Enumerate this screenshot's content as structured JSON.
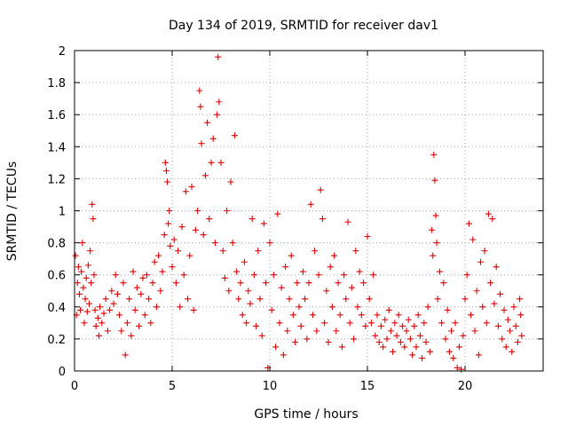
{
  "chart_data": {
    "type": "scatter",
    "title": "Day 134 of 2019, SRMTID for receiver dav1",
    "xlabel": "GPS time / hours",
    "ylabel": "SRMTID / TECUs",
    "xlim": [
      0,
      24
    ],
    "ylim": [
      0,
      2
    ],
    "xticks": [
      0,
      5,
      10,
      15,
      20
    ],
    "xtick_labels": [
      "0",
      "5",
      "10",
      "15",
      "20"
    ],
    "yticks": [
      0,
      0.2,
      0.4,
      0.6,
      0.8,
      1.0,
      1.2,
      1.4,
      1.6,
      1.8,
      2.0
    ],
    "ytick_labels": [
      "0",
      "0.2",
      "0.4",
      "0.6",
      "0.8",
      "1",
      "1.2",
      "1.4",
      "1.6",
      "1.8",
      "2"
    ],
    "grid": true,
    "marker": "+",
    "color": "#e00000",
    "series": [
      {
        "name": "SRMTID",
        "points": [
          [
            0.05,
            0.72
          ],
          [
            0.1,
            0.35
          ],
          [
            0.15,
            0.55
          ],
          [
            0.2,
            0.65
          ],
          [
            0.25,
            0.48
          ],
          [
            0.3,
            0.38
          ],
          [
            0.35,
            0.62
          ],
          [
            0.4,
            0.8
          ],
          [
            0.45,
            0.52
          ],
          [
            0.5,
            0.3
          ],
          [
            0.55,
            0.45
          ],
          [
            0.6,
            0.58
          ],
          [
            0.65,
            0.37
          ],
          [
            0.7,
            0.66
          ],
          [
            0.75,
            0.42
          ],
          [
            0.8,
            0.75
          ],
          [
            0.85,
            0.55
          ],
          [
            0.9,
            1.04
          ],
          [
            0.95,
            0.95
          ],
          [
            1.0,
            0.6
          ],
          [
            1.05,
            0.38
          ],
          [
            1.1,
            0.28
          ],
          [
            1.2,
            0.33
          ],
          [
            1.25,
            0.22
          ],
          [
            1.3,
            0.4
          ],
          [
            1.4,
            0.3
          ],
          [
            1.5,
            0.36
          ],
          [
            1.6,
            0.45
          ],
          [
            1.7,
            0.25
          ],
          [
            1.8,
            0.38
          ],
          [
            1.9,
            0.5
          ],
          [
            2.0,
            0.42
          ],
          [
            2.1,
            0.6
          ],
          [
            2.2,
            0.48
          ],
          [
            2.3,
            0.35
          ],
          [
            2.4,
            0.25
          ],
          [
            2.5,
            0.55
          ],
          [
            2.6,
            0.1
          ],
          [
            2.7,
            0.3
          ],
          [
            2.8,
            0.45
          ],
          [
            2.9,
            0.22
          ],
          [
            3.0,
            0.62
          ],
          [
            3.1,
            0.38
          ],
          [
            3.2,
            0.52
          ],
          [
            3.3,
            0.28
          ],
          [
            3.4,
            0.48
          ],
          [
            3.5,
            0.58
          ],
          [
            3.6,
            0.35
          ],
          [
            3.7,
            0.6
          ],
          [
            3.8,
            0.45
          ],
          [
            3.9,
            0.3
          ],
          [
            4.0,
            0.55
          ],
          [
            4.1,
            0.68
          ],
          [
            4.2,
            0.4
          ],
          [
            4.3,
            0.72
          ],
          [
            4.4,
            0.5
          ],
          [
            4.5,
            0.62
          ],
          [
            4.6,
            0.85
          ],
          [
            4.65,
            1.3
          ],
          [
            4.7,
            1.25
          ],
          [
            4.75,
            1.18
          ],
          [
            4.8,
            0.92
          ],
          [
            4.85,
            1.0
          ],
          [
            4.9,
            0.78
          ],
          [
            5.0,
            0.65
          ],
          [
            5.1,
            0.82
          ],
          [
            5.2,
            0.55
          ],
          [
            5.3,
            0.75
          ],
          [
            5.4,
            0.4
          ],
          [
            5.5,
            0.9
          ],
          [
            5.6,
            0.6
          ],
          [
            5.7,
            1.12
          ],
          [
            5.8,
            0.45
          ],
          [
            5.9,
            0.72
          ],
          [
            6.0,
            1.15
          ],
          [
            6.1,
            0.38
          ],
          [
            6.2,
            0.88
          ],
          [
            6.3,
            1.0
          ],
          [
            6.4,
            1.75
          ],
          [
            6.45,
            1.65
          ],
          [
            6.5,
            1.42
          ],
          [
            6.6,
            0.85
          ],
          [
            6.7,
            1.22
          ],
          [
            6.8,
            1.55
          ],
          [
            6.9,
            0.95
          ],
          [
            7.0,
            1.3
          ],
          [
            7.1,
            1.45
          ],
          [
            7.2,
            0.8
          ],
          [
            7.3,
            1.6
          ],
          [
            7.35,
            1.96
          ],
          [
            7.4,
            1.68
          ],
          [
            7.5,
            1.3
          ],
          [
            7.6,
            0.75
          ],
          [
            7.7,
            0.58
          ],
          [
            7.8,
            1.0
          ],
          [
            7.9,
            0.5
          ],
          [
            8.0,
            1.18
          ],
          [
            8.1,
            0.8
          ],
          [
            8.2,
            1.47
          ],
          [
            8.3,
            0.62
          ],
          [
            8.4,
            0.45
          ],
          [
            8.5,
            0.55
          ],
          [
            8.6,
            0.35
          ],
          [
            8.7,
            0.68
          ],
          [
            8.8,
            0.3
          ],
          [
            8.9,
            0.5
          ],
          [
            9.0,
            0.42
          ],
          [
            9.1,
            0.95
          ],
          [
            9.2,
            0.6
          ],
          [
            9.3,
            0.28
          ],
          [
            9.4,
            0.75
          ],
          [
            9.5,
            0.45
          ],
          [
            9.6,
            0.22
          ],
          [
            9.7,
            0.92
          ],
          [
            9.8,
            0.55
          ],
          [
            9.9,
            0.02
          ],
          [
            10.0,
            0.8
          ],
          [
            10.1,
            0.38
          ],
          [
            10.2,
            0.6
          ],
          [
            10.3,
            0.15
          ],
          [
            10.4,
            0.98
          ],
          [
            10.5,
            0.3
          ],
          [
            10.6,
            0.52
          ],
          [
            10.7,
            0.1
          ],
          [
            10.8,
            0.65
          ],
          [
            10.9,
            0.25
          ],
          [
            11.0,
            0.45
          ],
          [
            11.1,
            0.72
          ],
          [
            11.2,
            0.35
          ],
          [
            11.3,
            0.18
          ],
          [
            11.4,
            0.55
          ],
          [
            11.5,
            0.4
          ],
          [
            11.6,
            0.28
          ],
          [
            11.7,
            0.62
          ],
          [
            11.8,
            0.45
          ],
          [
            11.9,
            0.2
          ],
          [
            12.0,
            0.55
          ],
          [
            12.1,
            1.04
          ],
          [
            12.2,
            0.35
          ],
          [
            12.3,
            0.75
          ],
          [
            12.4,
            0.25
          ],
          [
            12.5,
            0.6
          ],
          [
            12.6,
            1.13
          ],
          [
            12.7,
            0.95
          ],
          [
            12.8,
            0.3
          ],
          [
            12.9,
            0.5
          ],
          [
            13.0,
            0.18
          ],
          [
            13.1,
            0.65
          ],
          [
            13.2,
            0.4
          ],
          [
            13.3,
            0.72
          ],
          [
            13.4,
            0.25
          ],
          [
            13.5,
            0.55
          ],
          [
            13.6,
            0.35
          ],
          [
            13.7,
            0.15
          ],
          [
            13.8,
            0.6
          ],
          [
            13.9,
            0.45
          ],
          [
            14.0,
            0.93
          ],
          [
            14.1,
            0.3
          ],
          [
            14.2,
            0.52
          ],
          [
            14.3,
            0.2
          ],
          [
            14.4,
            0.75
          ],
          [
            14.5,
            0.4
          ],
          [
            14.6,
            0.62
          ],
          [
            14.7,
            0.35
          ],
          [
            14.8,
            0.55
          ],
          [
            14.9,
            0.28
          ],
          [
            15.0,
            0.84
          ],
          [
            15.1,
            0.45
          ],
          [
            15.2,
            0.3
          ],
          [
            15.3,
            0.6
          ],
          [
            15.4,
            0.22
          ],
          [
            15.5,
            0.35
          ],
          [
            15.6,
            0.18
          ],
          [
            15.7,
            0.28
          ],
          [
            15.8,
            0.15
          ],
          [
            15.9,
            0.32
          ],
          [
            16.0,
            0.2
          ],
          [
            16.1,
            0.38
          ],
          [
            16.2,
            0.25
          ],
          [
            16.3,
            0.12
          ],
          [
            16.4,
            0.3
          ],
          [
            16.5,
            0.22
          ],
          [
            16.6,
            0.35
          ],
          [
            16.7,
            0.18
          ],
          [
            16.8,
            0.28
          ],
          [
            16.9,
            0.15
          ],
          [
            17.0,
            0.25
          ],
          [
            17.1,
            0.32
          ],
          [
            17.2,
            0.2
          ],
          [
            17.3,
            0.1
          ],
          [
            17.4,
            0.28
          ],
          [
            17.5,
            0.15
          ],
          [
            17.6,
            0.35
          ],
          [
            17.7,
            0.22
          ],
          [
            17.8,
            0.08
          ],
          [
            17.9,
            0.3
          ],
          [
            18.0,
            0.18
          ],
          [
            18.1,
            0.4
          ],
          [
            18.2,
            0.12
          ],
          [
            18.3,
            0.88
          ],
          [
            18.35,
            0.72
          ],
          [
            18.4,
            1.35
          ],
          [
            18.45,
            1.19
          ],
          [
            18.5,
            0.97
          ],
          [
            18.55,
            0.8
          ],
          [
            18.6,
            0.45
          ],
          [
            18.7,
            0.62
          ],
          [
            18.8,
            0.3
          ],
          [
            18.9,
            0.55
          ],
          [
            19.0,
            0.2
          ],
          [
            19.1,
            0.38
          ],
          [
            19.2,
            0.12
          ],
          [
            19.3,
            0.25
          ],
          [
            19.4,
            0.08
          ],
          [
            19.5,
            0.3
          ],
          [
            19.6,
            0.02
          ],
          [
            19.7,
            0.15
          ],
          [
            19.8,
            0.01
          ],
          [
            19.9,
            0.22
          ],
          [
            20.0,
            0.45
          ],
          [
            20.1,
            0.6
          ],
          [
            20.2,
            0.92
          ],
          [
            20.3,
            0.35
          ],
          [
            20.4,
            0.82
          ],
          [
            20.5,
            0.25
          ],
          [
            20.6,
            0.5
          ],
          [
            20.7,
            0.1
          ],
          [
            20.8,
            0.68
          ],
          [
            20.9,
            0.4
          ],
          [
            21.0,
            0.75
          ],
          [
            21.1,
            0.3
          ],
          [
            21.2,
            0.98
          ],
          [
            21.3,
            0.55
          ],
          [
            21.4,
            0.95
          ],
          [
            21.5,
            0.42
          ],
          [
            21.6,
            0.65
          ],
          [
            21.7,
            0.28
          ],
          [
            21.8,
            0.48
          ],
          [
            21.9,
            0.2
          ],
          [
            22.0,
            0.38
          ],
          [
            22.1,
            0.15
          ],
          [
            22.2,
            0.32
          ],
          [
            22.3,
            0.25
          ],
          [
            22.4,
            0.12
          ],
          [
            22.5,
            0.4
          ],
          [
            22.6,
            0.28
          ],
          [
            22.7,
            0.18
          ],
          [
            22.8,
            0.45
          ],
          [
            22.85,
            0.35
          ],
          [
            22.9,
            0.22
          ]
        ]
      }
    ]
  }
}
